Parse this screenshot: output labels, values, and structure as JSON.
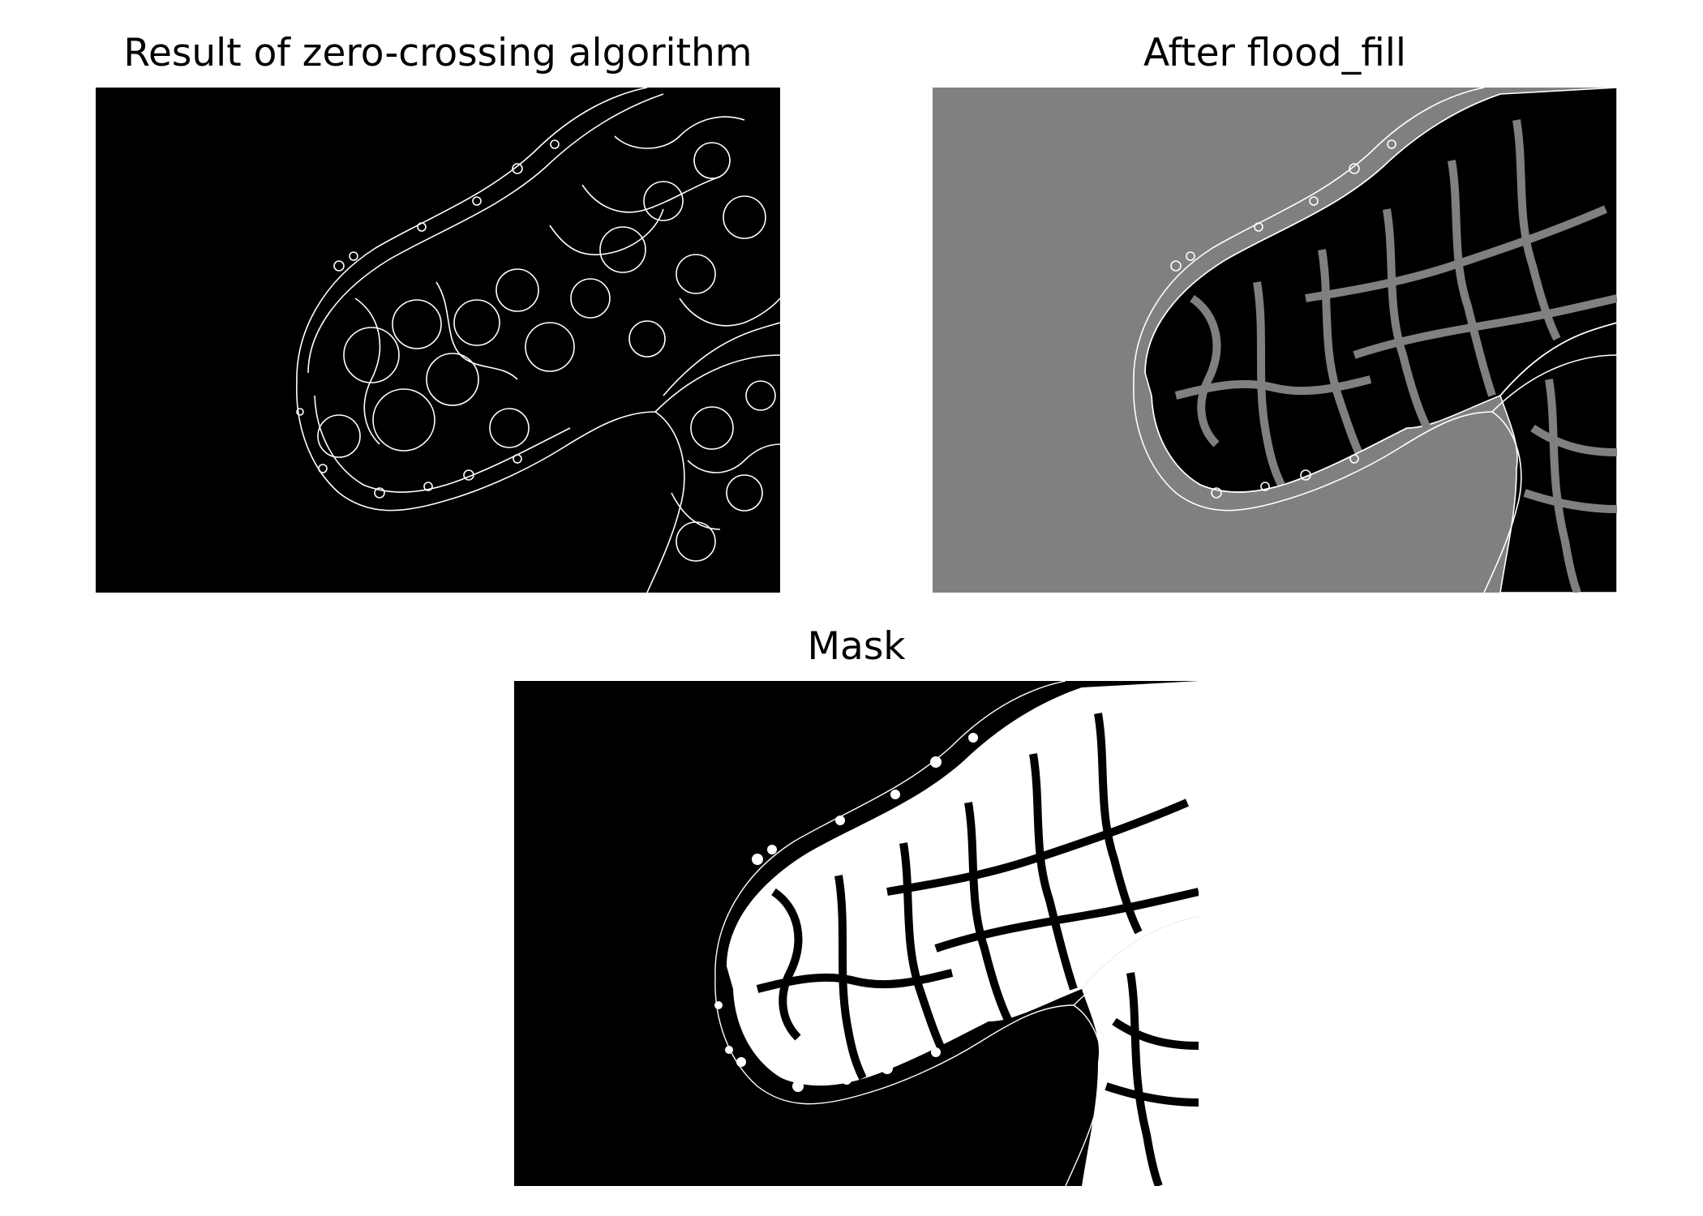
{
  "figure": {
    "panels": [
      {
        "title": "Result of zero-crossing algorithm",
        "background_color": "#000000",
        "foreground_color": "#ffffff"
      },
      {
        "title": "After flood_fill",
        "background_color": "#808080",
        "foreground_color": "#ffffff",
        "fill_color": "#000000"
      },
      {
        "title": "Mask",
        "background_color": "#000000",
        "foreground_color": "#ffffff"
      }
    ]
  }
}
